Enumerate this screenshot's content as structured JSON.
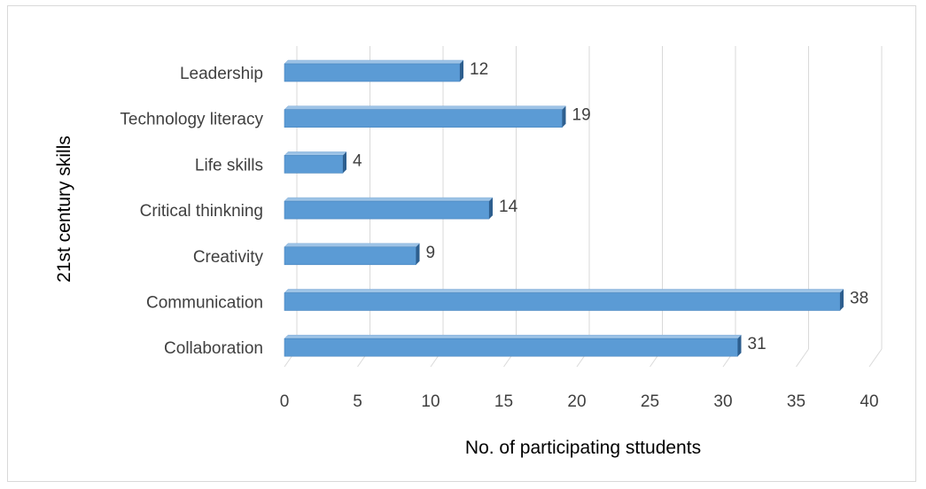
{
  "chart_data": {
    "type": "bar",
    "orientation": "horizontal",
    "style": "3d-clustered",
    "categories": [
      "Leadership",
      "Technology literacy",
      "Life skills",
      "Critical thinkning",
      "Creativity",
      "Communication",
      "Collaboration"
    ],
    "values": [
      12,
      19,
      4,
      14,
      9,
      38,
      31
    ],
    "data_labels": [
      "12",
      "19",
      "4",
      "14",
      "9",
      "38",
      "31"
    ],
    "xlabel": "No. of participating sttudents",
    "ylabel": "21st century skills",
    "xlim": [
      0,
      40
    ],
    "xticks": [
      0,
      5,
      10,
      15,
      20,
      25,
      30,
      35,
      40
    ],
    "xtick_labels": [
      "0",
      "5",
      "10",
      "15",
      "20",
      "25",
      "30",
      "35",
      "40"
    ],
    "grid": true,
    "legend": "none",
    "colors": {
      "bar_front": "#5b9bd5",
      "bar_top": "#9dc3e6",
      "bar_side": "#2e5f8f",
      "gridline": "#d9d9d9",
      "text": "#404040"
    }
  }
}
